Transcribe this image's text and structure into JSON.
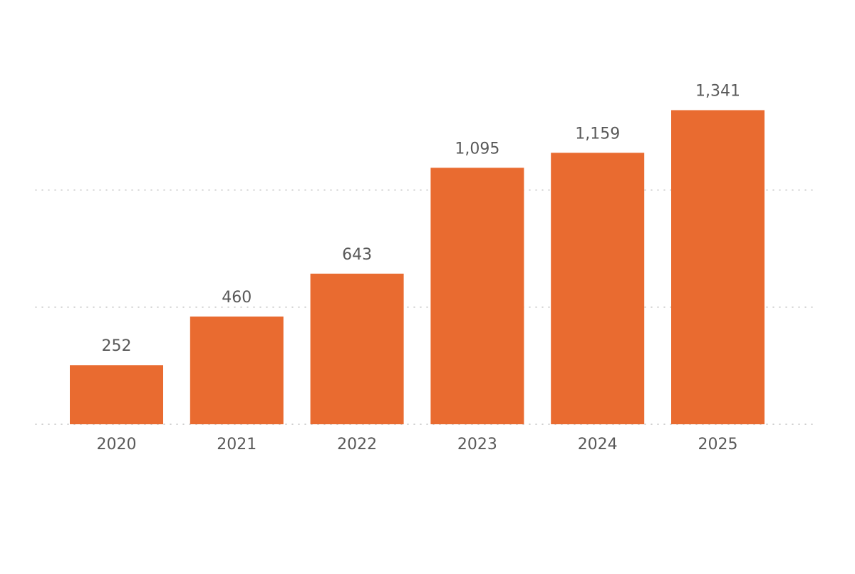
{
  "chart_data": {
    "type": "bar",
    "title": "",
    "xlabel": "",
    "ylabel": "",
    "categories": [
      "2020",
      "2021",
      "2022",
      "2023",
      "2024",
      "2025"
    ],
    "series": [
      {
        "values": [
          252,
          460,
          643,
          1095,
          1159,
          1341
        ],
        "value_labels": [
          "252",
          "460",
          "643",
          "1,095",
          "1,159",
          "1,341"
        ]
      }
    ],
    "ylim": [
      0,
      1500
    ],
    "gridlines": [
      0,
      500,
      1000
    ],
    "grid": true,
    "grid_style": "dotted",
    "legend": "none",
    "colors": {
      "bar": "#E96B30",
      "label_text": "#595959",
      "gridline": "#BFBFBF",
      "background": "#FFFFFF"
    }
  }
}
